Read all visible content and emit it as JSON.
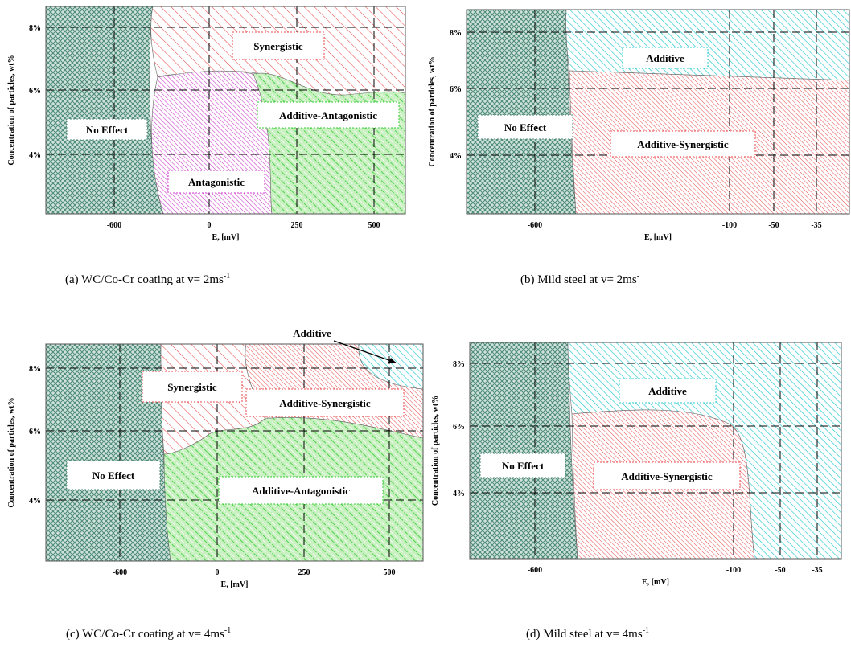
{
  "colors": {
    "no_effect": "#4e8a78",
    "synergistic": "#e84a4a",
    "additive": "#2ccbd1",
    "antagonistic": "#cc33cc",
    "additive_antagonistic": "#33cc33",
    "additive_synergistic": "#e84a4a"
  },
  "chart_data": [
    {
      "id": "a",
      "type": "area",
      "caption": "(a) WC/Co-Cr coating at v= 2ms",
      "caption_sup": "-1",
      "xlabel": "E, [mV]",
      "ylabel": "Concentration of particles, wt%",
      "x_ticks": [
        "-600",
        "0",
        "250",
        "500"
      ],
      "y_ticks": [
        "4%",
        "6%",
        "8%"
      ],
      "regions": [
        {
          "name": "No Effect",
          "color": "no_effect"
        },
        {
          "name": "Synergistic",
          "color": "synergistic"
        },
        {
          "name": "Antagonistic",
          "color": "antagonistic"
        },
        {
          "name": "Additive-Antagonistic",
          "color": "additive_antagonistic"
        }
      ]
    },
    {
      "id": "b",
      "type": "area",
      "caption": "(b) Mild steel at v= 2ms",
      "caption_sup": "-",
      "xlabel": "E, [mV]",
      "ylabel": "Concentration of particles, wt%",
      "x_ticks": [
        "-600",
        "-100",
        "-50",
        "-35"
      ],
      "y_ticks": [
        "4%",
        "6%",
        "8%"
      ],
      "regions": [
        {
          "name": "No Effect",
          "color": "no_effect"
        },
        {
          "name": "Additive",
          "color": "additive"
        },
        {
          "name": "Additive-Synergistic",
          "color": "additive_synergistic"
        }
      ]
    },
    {
      "id": "c",
      "type": "area",
      "caption": "(c) WC/Co-Cr coating at v= 4ms",
      "caption_sup": "-1",
      "xlabel": "E, [mV]",
      "ylabel": "Concentration of particles, wt%",
      "x_ticks": [
        "-600",
        "0",
        "250",
        "500"
      ],
      "y_ticks": [
        "4%",
        "6%",
        "8%"
      ],
      "regions": [
        {
          "name": "No Effect",
          "color": "no_effect"
        },
        {
          "name": "Synergistic",
          "color": "synergistic"
        },
        {
          "name": "Additive-Synergistic",
          "color": "additive_synergistic"
        },
        {
          "name": "Additive-Antagonistic",
          "color": "additive_antagonistic"
        },
        {
          "name": "Additive",
          "color": "additive"
        }
      ],
      "annotation": "Additive"
    },
    {
      "id": "d",
      "type": "area",
      "caption": "(d) Mild steel at v= 4ms",
      "caption_sup": "-1",
      "xlabel": "E, [mV]",
      "ylabel": "Concentration of particles, wt%",
      "x_ticks": [
        "-600",
        "-100",
        "-50",
        "-35"
      ],
      "y_ticks": [
        "4%",
        "6%",
        "8%"
      ],
      "regions": [
        {
          "name": "No Effect",
          "color": "no_effect"
        },
        {
          "name": "Additive",
          "color": "additive"
        },
        {
          "name": "Additive-Synergistic",
          "color": "additive_synergistic"
        }
      ]
    }
  ]
}
